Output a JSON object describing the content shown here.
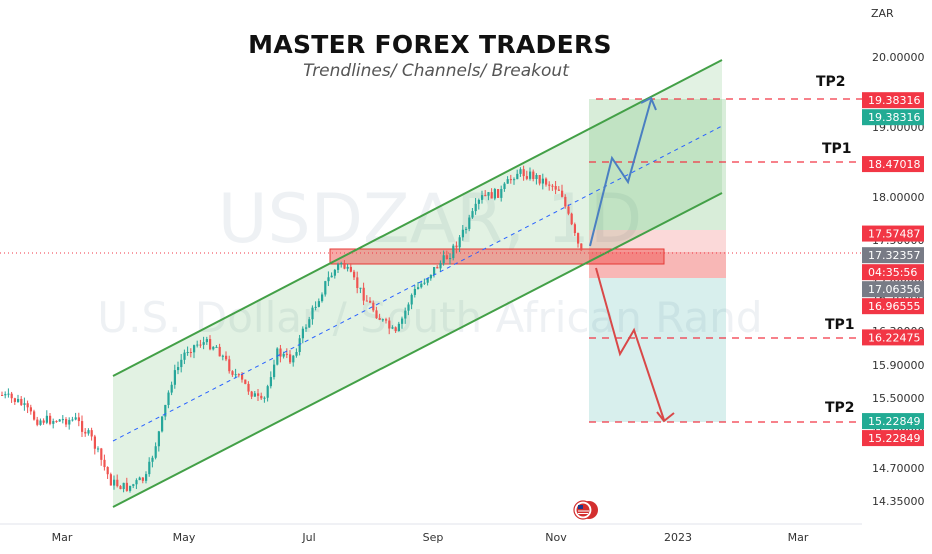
{
  "header": {
    "title": "MASTER FOREX TRADERS",
    "subtitle": "Trendlines/ Channels/ Breakout"
  },
  "watermark": {
    "symbol": "USDZAR, 1D",
    "name": "U.S. Dollar / South African Rand"
  },
  "chart_data": {
    "type": "candlestick",
    "title": "",
    "currency": "ZAR",
    "x_ticks": [
      "Mar",
      "May",
      "Jul",
      "Sep",
      "Nov",
      "2023",
      "Mar"
    ],
    "y_ticks": [
      20.0,
      19.0,
      18.0,
      17.5,
      17.0,
      16.7,
      16.3,
      15.9,
      15.5,
      15.1,
      14.7,
      14.35
    ],
    "y_tick_labels": [
      "20.00000",
      "19.00000",
      "18.00000",
      "17.50000",
      "17.00000",
      "16.70000",
      "16.30000",
      "15.90000",
      "15.50000",
      "15.10000",
      "14.70000",
      "14.35000"
    ],
    "price_tags": [
      {
        "label": "19.38316",
        "value": 19.38316,
        "color": "#f23645"
      },
      {
        "label": "19.38316",
        "value": 19.38316,
        "color": "#22ab94"
      },
      {
        "label": "18.47018",
        "value": 18.47018,
        "color": "#f23645"
      },
      {
        "label": "17.57487",
        "value": 17.57487,
        "color": "#f23645"
      },
      {
        "label": "17.32357",
        "value": 17.32357,
        "color": "#787b86"
      },
      {
        "label": "04:35:56",
        "value": 17.17,
        "color": "#f23645"
      },
      {
        "label": "17.06356",
        "value": 17.06356,
        "color": "#787b86"
      },
      {
        "label": "16.96555",
        "value": 16.96555,
        "color": "#f23645"
      },
      {
        "label": "16.22475",
        "value": 16.22475,
        "color": "#f23645"
      },
      {
        "label": "15.22849",
        "value": 15.22849,
        "color": "#22ab94"
      },
      {
        "label": "15.22849",
        "value": 15.22849,
        "color": "#f23645"
      }
    ],
    "targets": [
      {
        "label": "TP2",
        "value": 19.38316,
        "direction": "up"
      },
      {
        "label": "TP1",
        "value": 18.47018,
        "direction": "up"
      },
      {
        "label": "TP1",
        "value": 16.22475,
        "direction": "down"
      },
      {
        "label": "TP2",
        "value": 15.22849,
        "direction": "down"
      }
    ],
    "current_price": 17.17,
    "colors": {
      "up": "#26a69a",
      "down": "#ef5350",
      "channel": "#4caf50",
      "target_line": "#f23645"
    }
  }
}
